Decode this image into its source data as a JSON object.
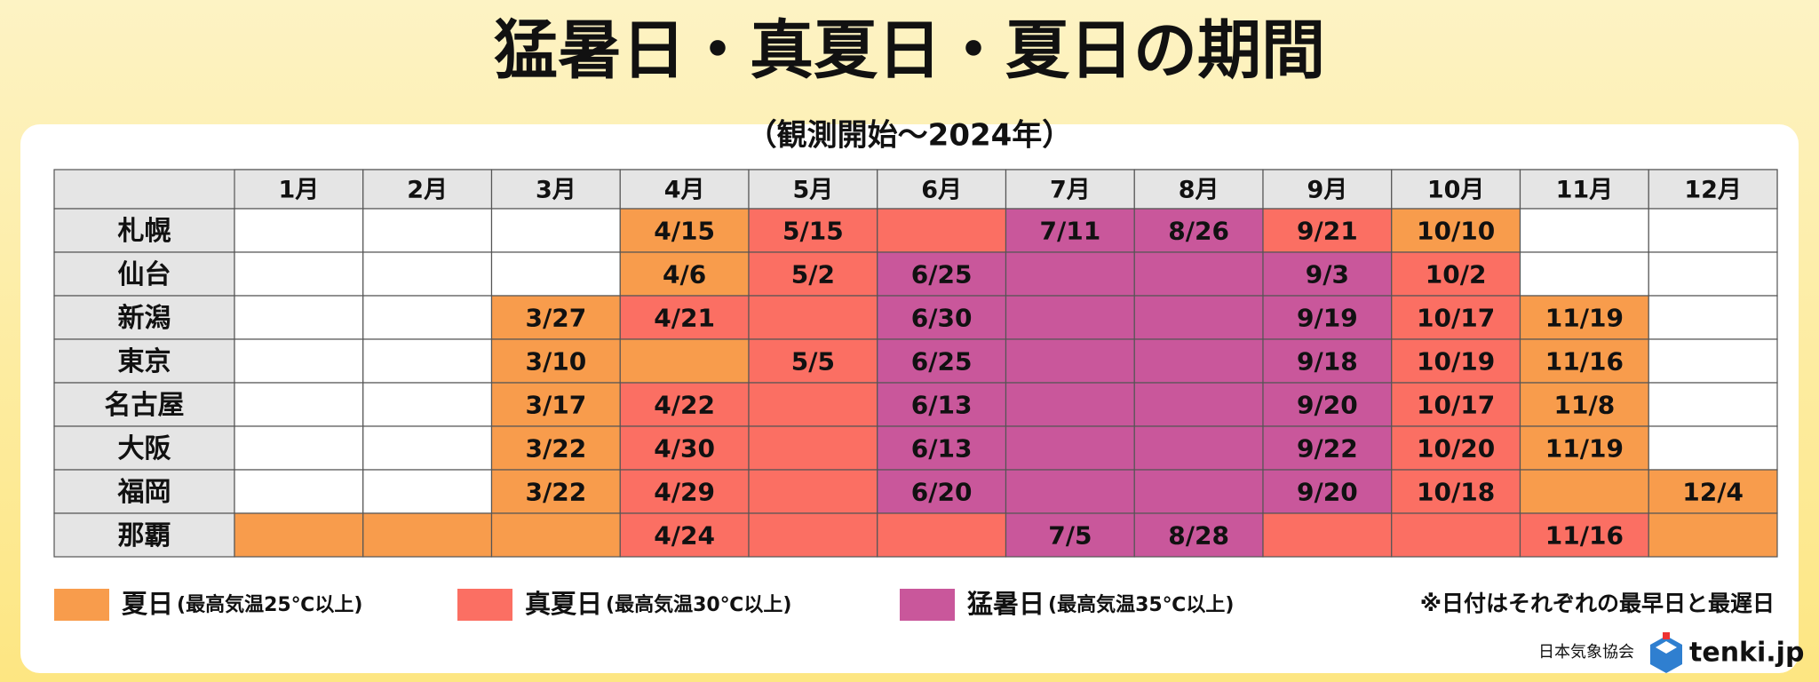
{
  "header": {
    "title": "猛暑日・真夏日・夏日の期間",
    "subtitle": "（観測開始～2024年）"
  },
  "table": {
    "columns": [
      "1月",
      "2月",
      "3月",
      "4月",
      "5月",
      "6月",
      "7月",
      "8月",
      "9月",
      "10月",
      "11月",
      "12月"
    ],
    "rows": [
      {
        "city": "札幌",
        "cells": [
          null,
          null,
          null,
          {
            "type": 0,
            "text": "4/15"
          },
          {
            "type": 1,
            "text": "5/15"
          },
          {
            "type": 1
          },
          {
            "type": 2,
            "text": "7/11"
          },
          {
            "type": 2,
            "text": "8/26"
          },
          {
            "type": 1,
            "text": "9/21"
          },
          {
            "type": 0,
            "text": "10/10"
          },
          null,
          null
        ]
      },
      {
        "city": "仙台",
        "cells": [
          null,
          null,
          null,
          {
            "type": 0,
            "text": "4/6"
          },
          {
            "type": 1,
            "text": "5/2"
          },
          {
            "type": 2,
            "text": "6/25"
          },
          {
            "type": 2
          },
          {
            "type": 2
          },
          {
            "type": 2,
            "text": "9/3"
          },
          {
            "type": 1,
            "text": "10/2"
          },
          null,
          null
        ]
      },
      {
        "city": "新潟",
        "cells": [
          null,
          null,
          {
            "type": 0,
            "text": "3/27"
          },
          {
            "type": 1,
            "text": "4/21"
          },
          {
            "type": 1
          },
          {
            "type": 2,
            "text": "6/30"
          },
          {
            "type": 2
          },
          {
            "type": 2
          },
          {
            "type": 2,
            "text": "9/19"
          },
          {
            "type": 1,
            "text": "10/17"
          },
          {
            "type": 0,
            "text": "11/19"
          },
          null
        ]
      },
      {
        "city": "東京",
        "cells": [
          null,
          null,
          {
            "type": 0,
            "text": "3/10"
          },
          {
            "type": 0
          },
          {
            "type": 1,
            "text": "5/5"
          },
          {
            "type": 2,
            "text": "6/25"
          },
          {
            "type": 2
          },
          {
            "type": 2
          },
          {
            "type": 2,
            "text": "9/18"
          },
          {
            "type": 1,
            "text": "10/19"
          },
          {
            "type": 0,
            "text": "11/16"
          },
          null
        ]
      },
      {
        "city": "名古屋",
        "cells": [
          null,
          null,
          {
            "type": 0,
            "text": "3/17"
          },
          {
            "type": 1,
            "text": "4/22"
          },
          {
            "type": 1
          },
          {
            "type": 2,
            "text": "6/13"
          },
          {
            "type": 2
          },
          {
            "type": 2
          },
          {
            "type": 2,
            "text": "9/20"
          },
          {
            "type": 1,
            "text": "10/17"
          },
          {
            "type": 0,
            "text": "11/8"
          },
          null
        ]
      },
      {
        "city": "大阪",
        "cells": [
          null,
          null,
          {
            "type": 0,
            "text": "3/22"
          },
          {
            "type": 1,
            "text": "4/30"
          },
          {
            "type": 1
          },
          {
            "type": 2,
            "text": "6/13"
          },
          {
            "type": 2
          },
          {
            "type": 2
          },
          {
            "type": 2,
            "text": "9/22"
          },
          {
            "type": 1,
            "text": "10/20"
          },
          {
            "type": 0,
            "text": "11/19"
          },
          null
        ]
      },
      {
        "city": "福岡",
        "cells": [
          null,
          null,
          {
            "type": 0,
            "text": "3/22"
          },
          {
            "type": 1,
            "text": "4/29"
          },
          {
            "type": 1
          },
          {
            "type": 2,
            "text": "6/20"
          },
          {
            "type": 2
          },
          {
            "type": 2
          },
          {
            "type": 2,
            "text": "9/20"
          },
          {
            "type": 1,
            "text": "10/18"
          },
          {
            "type": 0
          },
          {
            "type": 0,
            "text": "12/4"
          }
        ]
      },
      {
        "city": "那覇",
        "cells": [
          {
            "type": 0
          },
          {
            "type": 0
          },
          {
            "type": 0
          },
          {
            "type": 1,
            "text": "4/24"
          },
          {
            "type": 1
          },
          {
            "type": 1
          },
          {
            "type": 2,
            "text": "7/5"
          },
          {
            "type": 2,
            "text": "8/28"
          },
          {
            "type": 1
          },
          {
            "type": 1
          },
          {
            "type": 1,
            "text": "11/16"
          },
          {
            "type": 0
          }
        ]
      }
    ]
  },
  "legend": [
    {
      "name": "夏日",
      "note": "(最高気温25℃以上)",
      "color": "#f89c4c"
    },
    {
      "name": "真夏日",
      "note": "(最高気温30℃以上)",
      "color": "#fb6f63"
    },
    {
      "name": "猛暑日",
      "note": "(最高気温35℃以上)",
      "color": "#c9579b"
    }
  ],
  "note": "※日付はそれぞれの最早日と最遅日",
  "footer": {
    "org": "日本気象協会",
    "logo": "tenki.jp"
  }
}
